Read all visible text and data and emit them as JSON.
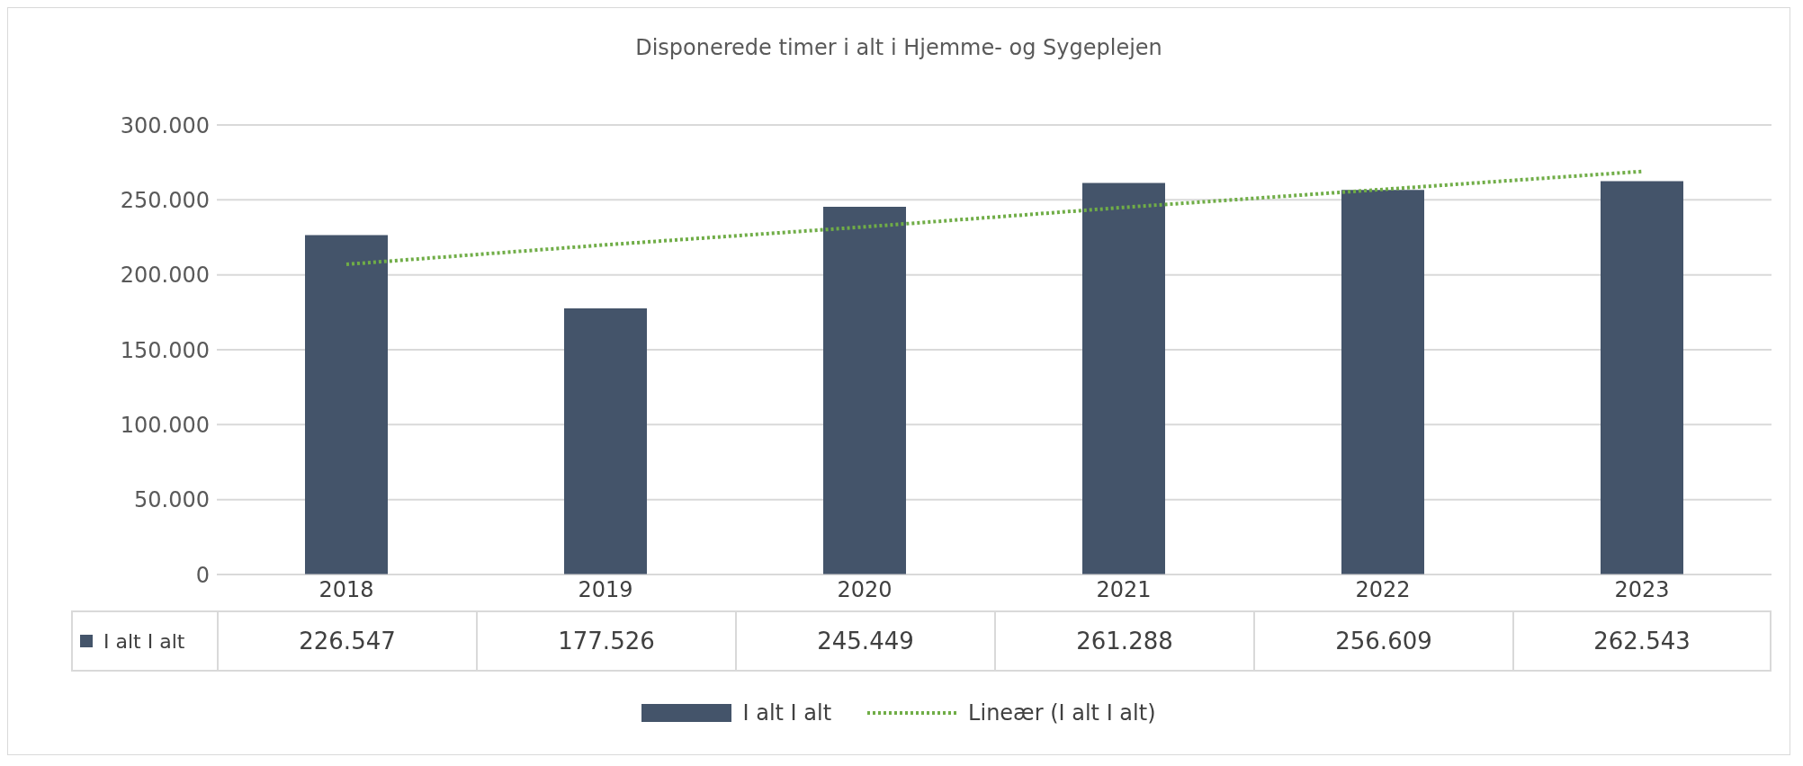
{
  "chart_data": {
    "type": "bar",
    "title": "Disponerede timer i alt i Hjemme- og Sygeplejen",
    "categories": [
      "2018",
      "2019",
      "2020",
      "2021",
      "2022",
      "2023"
    ],
    "series": [
      {
        "name": "I alt I alt",
        "color": "#44546a",
        "values": [
          226547,
          177526,
          245449,
          261288,
          256609,
          262543
        ],
        "value_labels": [
          "226.547",
          "177.526",
          "245.449",
          "261.288",
          "256.609",
          "262.543"
        ]
      },
      {
        "name": "Lineær (I alt I alt)",
        "type": "line",
        "color": "#70ad47",
        "line_style": "dotted",
        "marker": "none",
        "values": [
          207000,
          220000,
          232000,
          245000,
          257000,
          269000
        ]
      }
    ],
    "ylim": [
      0,
      300000
    ],
    "yticks": [
      0,
      {
        "value": 50000,
        "label": "50.000"
      },
      {
        "value": 100000,
        "label": "100.000"
      },
      {
        "value": 150000,
        "label": "150.000"
      },
      {
        "value": 200000,
        "label": "200.000"
      },
      {
        "value": 250000,
        "label": "250.000"
      },
      {
        "value": 300000,
        "label": "300.000"
      }
    ],
    "grid": "y",
    "legend": "bottom"
  }
}
